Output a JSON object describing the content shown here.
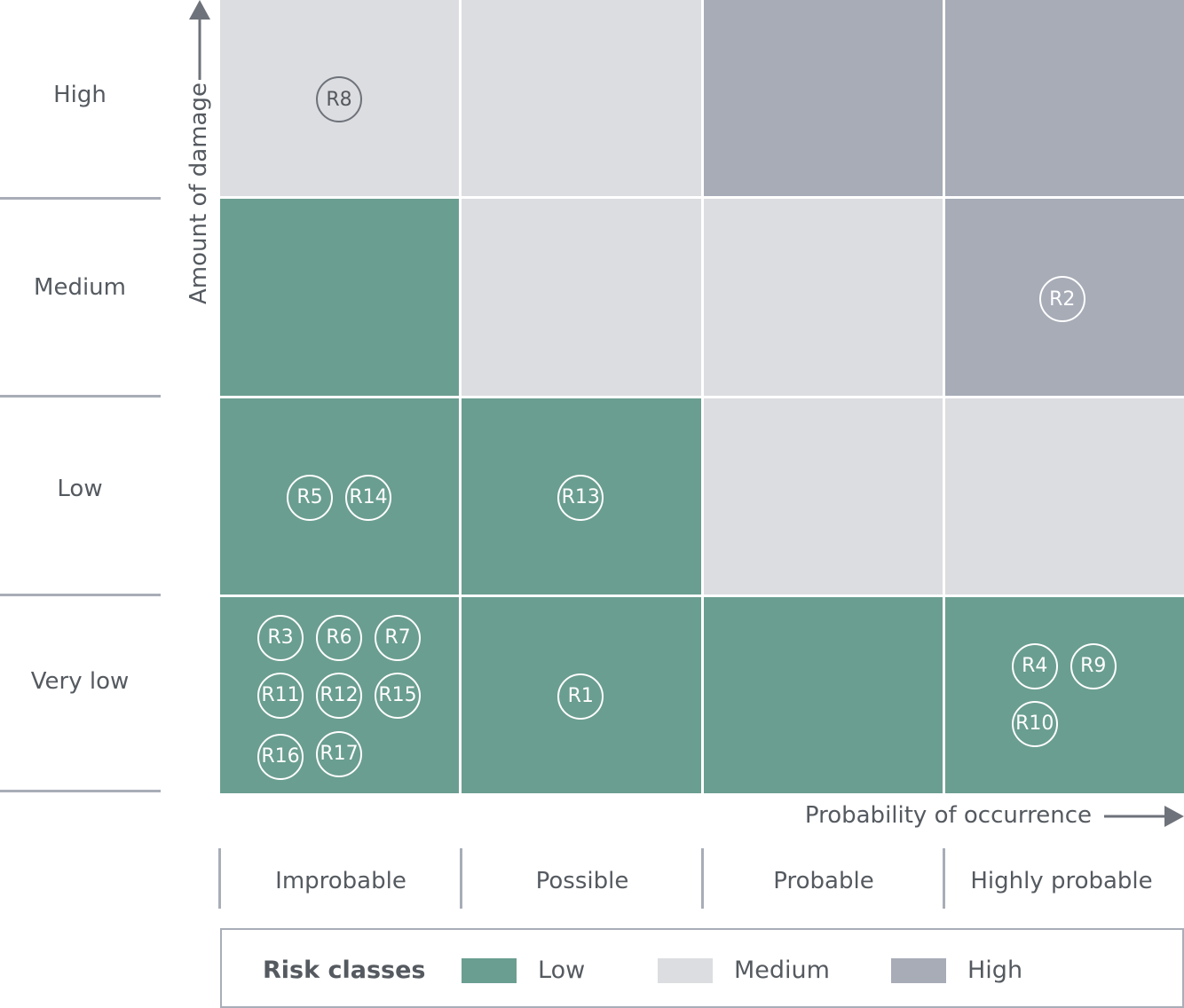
{
  "y_axis": {
    "title": "Amount of damage",
    "levels": [
      "High",
      "Medium",
      "Low",
      "Very low"
    ]
  },
  "x_axis": {
    "title": "Probability of occurrence",
    "levels": [
      "Improbable",
      "Possible",
      "Probable",
      "Highly probable"
    ]
  },
  "matrix": [
    [
      "medium",
      "medium",
      "high",
      "high"
    ],
    [
      "low",
      "medium",
      "medium",
      "high"
    ],
    [
      "low",
      "low",
      "medium",
      "medium"
    ],
    [
      "low",
      "low",
      "low",
      "low"
    ]
  ],
  "risks": {
    "r8": "R8",
    "r2": "R2",
    "r5": "R5",
    "r14": "R14",
    "r13": "R13",
    "r3": "R3",
    "r6": "R6",
    "r7": "R7",
    "r11": "R11",
    "r12": "R12",
    "r15": "R15",
    "r16": "R16",
    "r17": "R17",
    "r1": "R1",
    "r4": "R4",
    "r9": "R9",
    "r10": "R10"
  },
  "legend": {
    "title": "Risk classes",
    "low": "Low",
    "medium": "Medium",
    "high": "High"
  },
  "colors": {
    "low": "#6a9e90",
    "medium": "#dcdde0",
    "high": "#a7acb7",
    "axis": "#6e727a"
  }
}
